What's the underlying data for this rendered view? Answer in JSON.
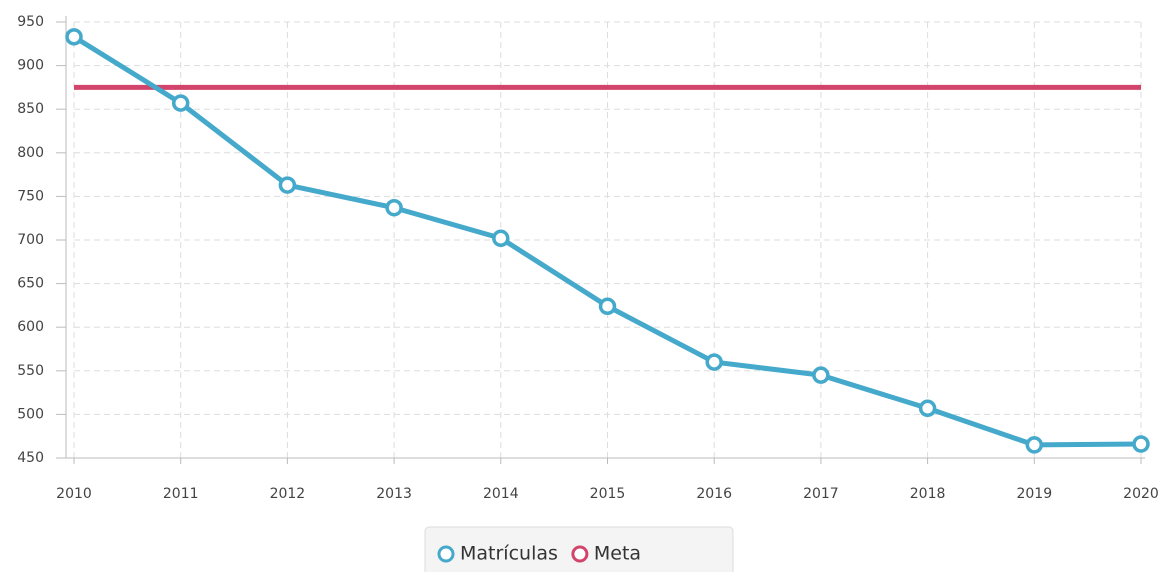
{
  "chart_data": {
    "type": "line",
    "x": [
      2010,
      2011,
      2012,
      2013,
      2014,
      2015,
      2016,
      2017,
      2018,
      2019,
      2020
    ],
    "series": [
      {
        "name": "Matrículas",
        "color": "#45a9cb",
        "markers": true,
        "values": [
          933,
          857,
          763,
          737,
          702,
          624,
          560,
          545,
          507,
          465,
          466
        ]
      },
      {
        "name": "Meta",
        "color": "#d2446c",
        "markers": false,
        "values": [
          875,
          875,
          875,
          875,
          875,
          875,
          875,
          875,
          875,
          875,
          875
        ]
      }
    ],
    "xlim": [
      2010,
      2020
    ],
    "xticks": [
      2010,
      2011,
      2012,
      2013,
      2014,
      2015,
      2016,
      2017,
      2018,
      2019,
      2020
    ],
    "ylim": [
      450,
      950
    ],
    "yticks": [
      450,
      500,
      550,
      600,
      650,
      700,
      750,
      800,
      850,
      900,
      950
    ],
    "grid": true,
    "legend": "bottom"
  }
}
